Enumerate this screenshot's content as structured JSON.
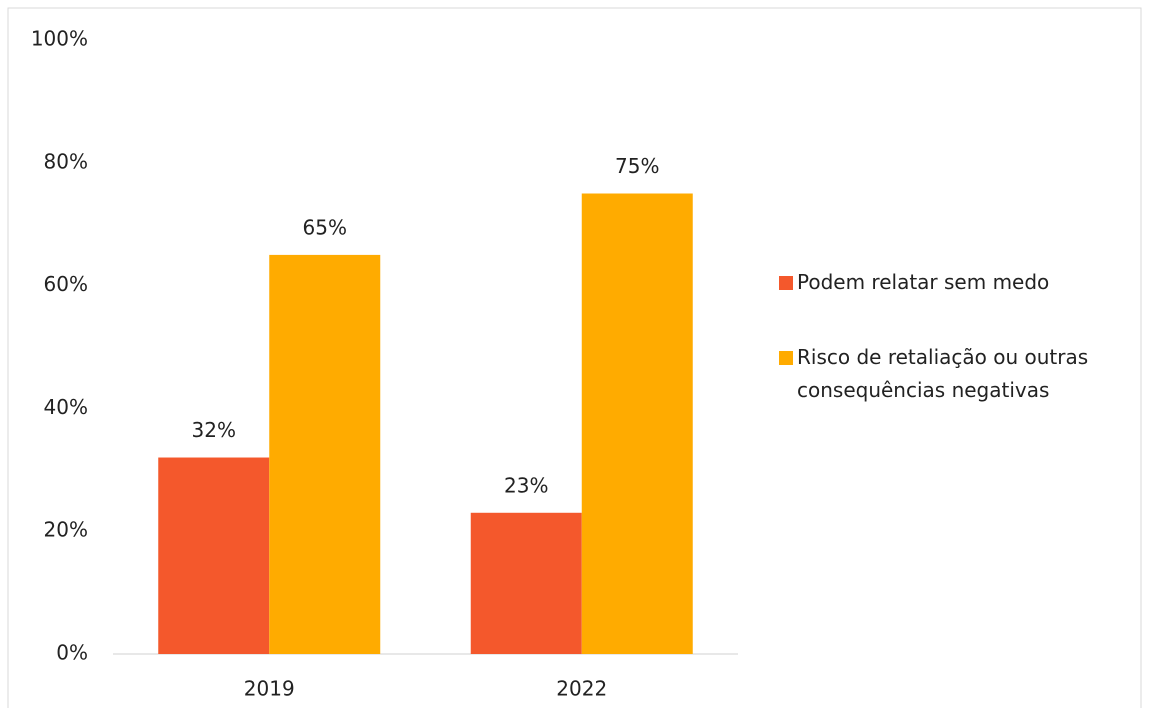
{
  "chart_data": {
    "type": "bar",
    "categories": [
      "2019",
      "2022"
    ],
    "series": [
      {
        "name": "Podem relatar sem medo",
        "color": "#f4582c",
        "values": [
          32,
          23
        ],
        "value_labels": [
          "32%",
          "23%"
        ]
      },
      {
        "name": "Risco de retaliação ou outras consequências negativas",
        "color": "#ffab00",
        "values": [
          65,
          75
        ],
        "value_labels": [
          "65%",
          "75%"
        ]
      }
    ],
    "ylim": [
      0,
      100
    ],
    "yticks": [
      {
        "value": 0,
        "label": "0%"
      },
      {
        "value": 20,
        "label": "20%"
      },
      {
        "value": 40,
        "label": "40%"
      },
      {
        "value": 60,
        "label": "60%"
      },
      {
        "value": 80,
        "label": "80%"
      },
      {
        "value": 100,
        "label": "100%"
      }
    ],
    "legend": "right"
  }
}
